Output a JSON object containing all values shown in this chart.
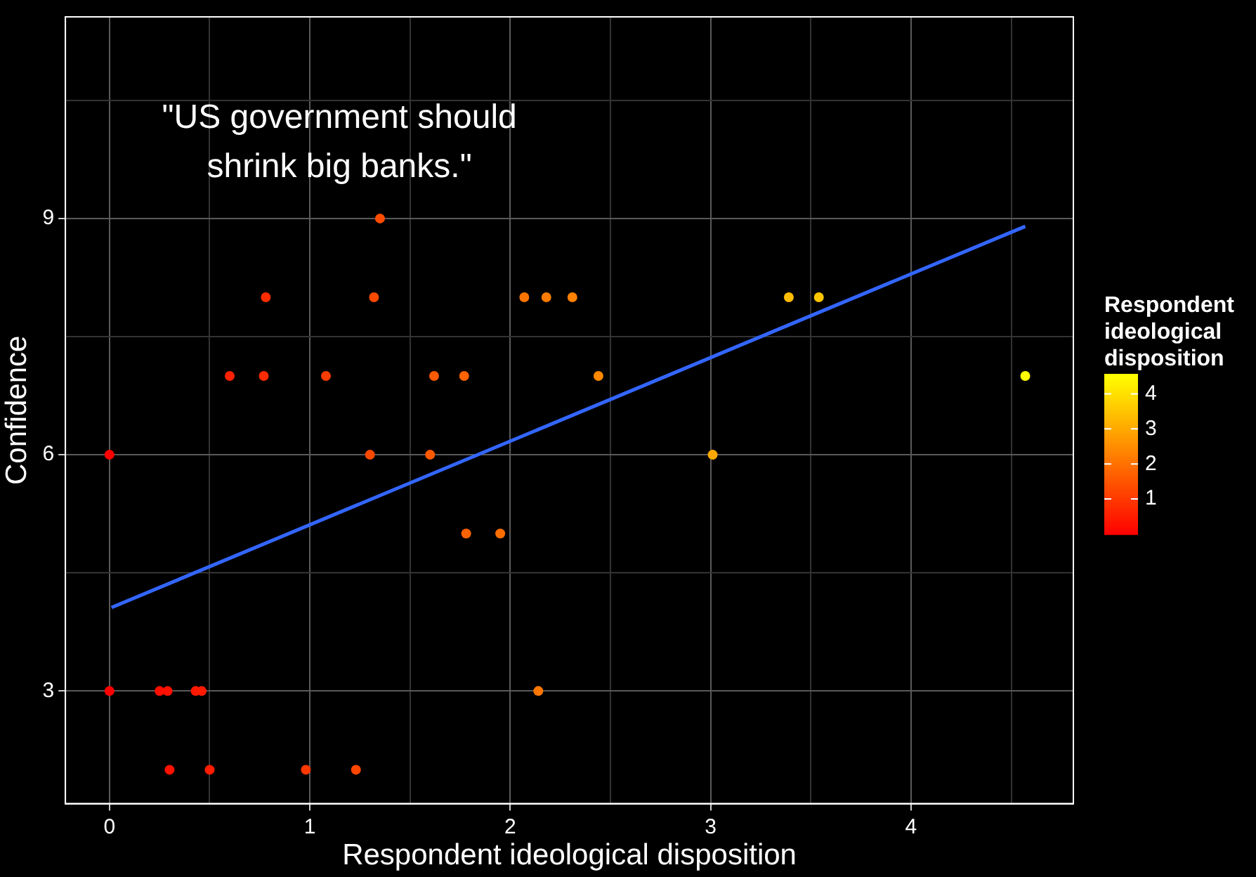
{
  "chart_data": {
    "type": "scatter",
    "xlabel": "Respondent ideological disposition",
    "ylabel": "Confidence",
    "clabel": "Respondent ideological disposition",
    "annotations": [
      "\"US government should\nshrink big banks.\""
    ],
    "xlim": [
      -0.22,
      4.81
    ],
    "xticks": [
      0,
      {
        "value": 0.5,
        "label": null
      },
      1,
      {
        "value": 1.5,
        "label": null
      },
      2,
      {
        "value": 2.5,
        "label": null
      },
      3,
      {
        "value": 3.5,
        "label": null
      },
      4,
      {
        "value": 4.5,
        "label": null
      }
    ],
    "ylim": [
      1.57,
      11.56
    ],
    "yticks": [
      3,
      {
        "value": 4.5,
        "label": null
      },
      6,
      {
        "value": 7.5,
        "label": null
      },
      9,
      {
        "value": 10.5,
        "label": null
      }
    ],
    "clim": [
      0,
      4.57
    ],
    "cticks": [
      1,
      2,
      3,
      4
    ],
    "grid": true,
    "legend": false,
    "series": [
      {
        "marker": "circle",
        "colors": [
          "#ff0000",
          "#ff0000",
          "#ff0e00",
          "#ff1000",
          "#ff1800",
          "#ff1a00",
          "#ff1100",
          "#ff1c00",
          "#ff3700",
          "#ff4500",
          "#ff2100",
          "#ff2b00",
          "#ff2c00",
          "#ff3c00",
          "#ff4a00",
          "#ff4b00",
          "#ff4900",
          "#ff5900",
          "#ff5a00",
          "#ff6300",
          "#ff6300",
          "#ff6d00",
          "#ff7400",
          "#ff7a00",
          "#ff8100",
          "#ff8800",
          "#ff7700",
          "#ffa800",
          "#ffbd00",
          "#ffc600",
          "#ffff00"
        ],
        "x": [
          0,
          0,
          0.25,
          0.29,
          0.43,
          0.46,
          0.3,
          0.5,
          0.98,
          1.23,
          0.6,
          0.77,
          0.78,
          1.08,
          1.32,
          1.35,
          1.3,
          1.6,
          1.62,
          1.77,
          1.78,
          1.95,
          2.07,
          2.18,
          2.31,
          2.44,
          2.14,
          3.01,
          3.39,
          3.54,
          4.57
        ],
        "values": [
          6,
          3,
          3,
          3,
          3,
          3,
          2,
          2,
          2,
          2,
          7,
          7,
          8,
          7,
          8,
          9,
          6,
          6,
          7,
          7,
          5,
          5,
          8,
          8,
          8,
          7,
          3,
          6,
          8,
          8,
          7
        ]
      },
      {
        "type": "line",
        "x": [
          0.01,
          4.57
        ],
        "values": [
          4.06,
          8.9
        ],
        "color": "#3366ff",
        "line_style": "solid",
        "marker": "none"
      }
    ]
  }
}
